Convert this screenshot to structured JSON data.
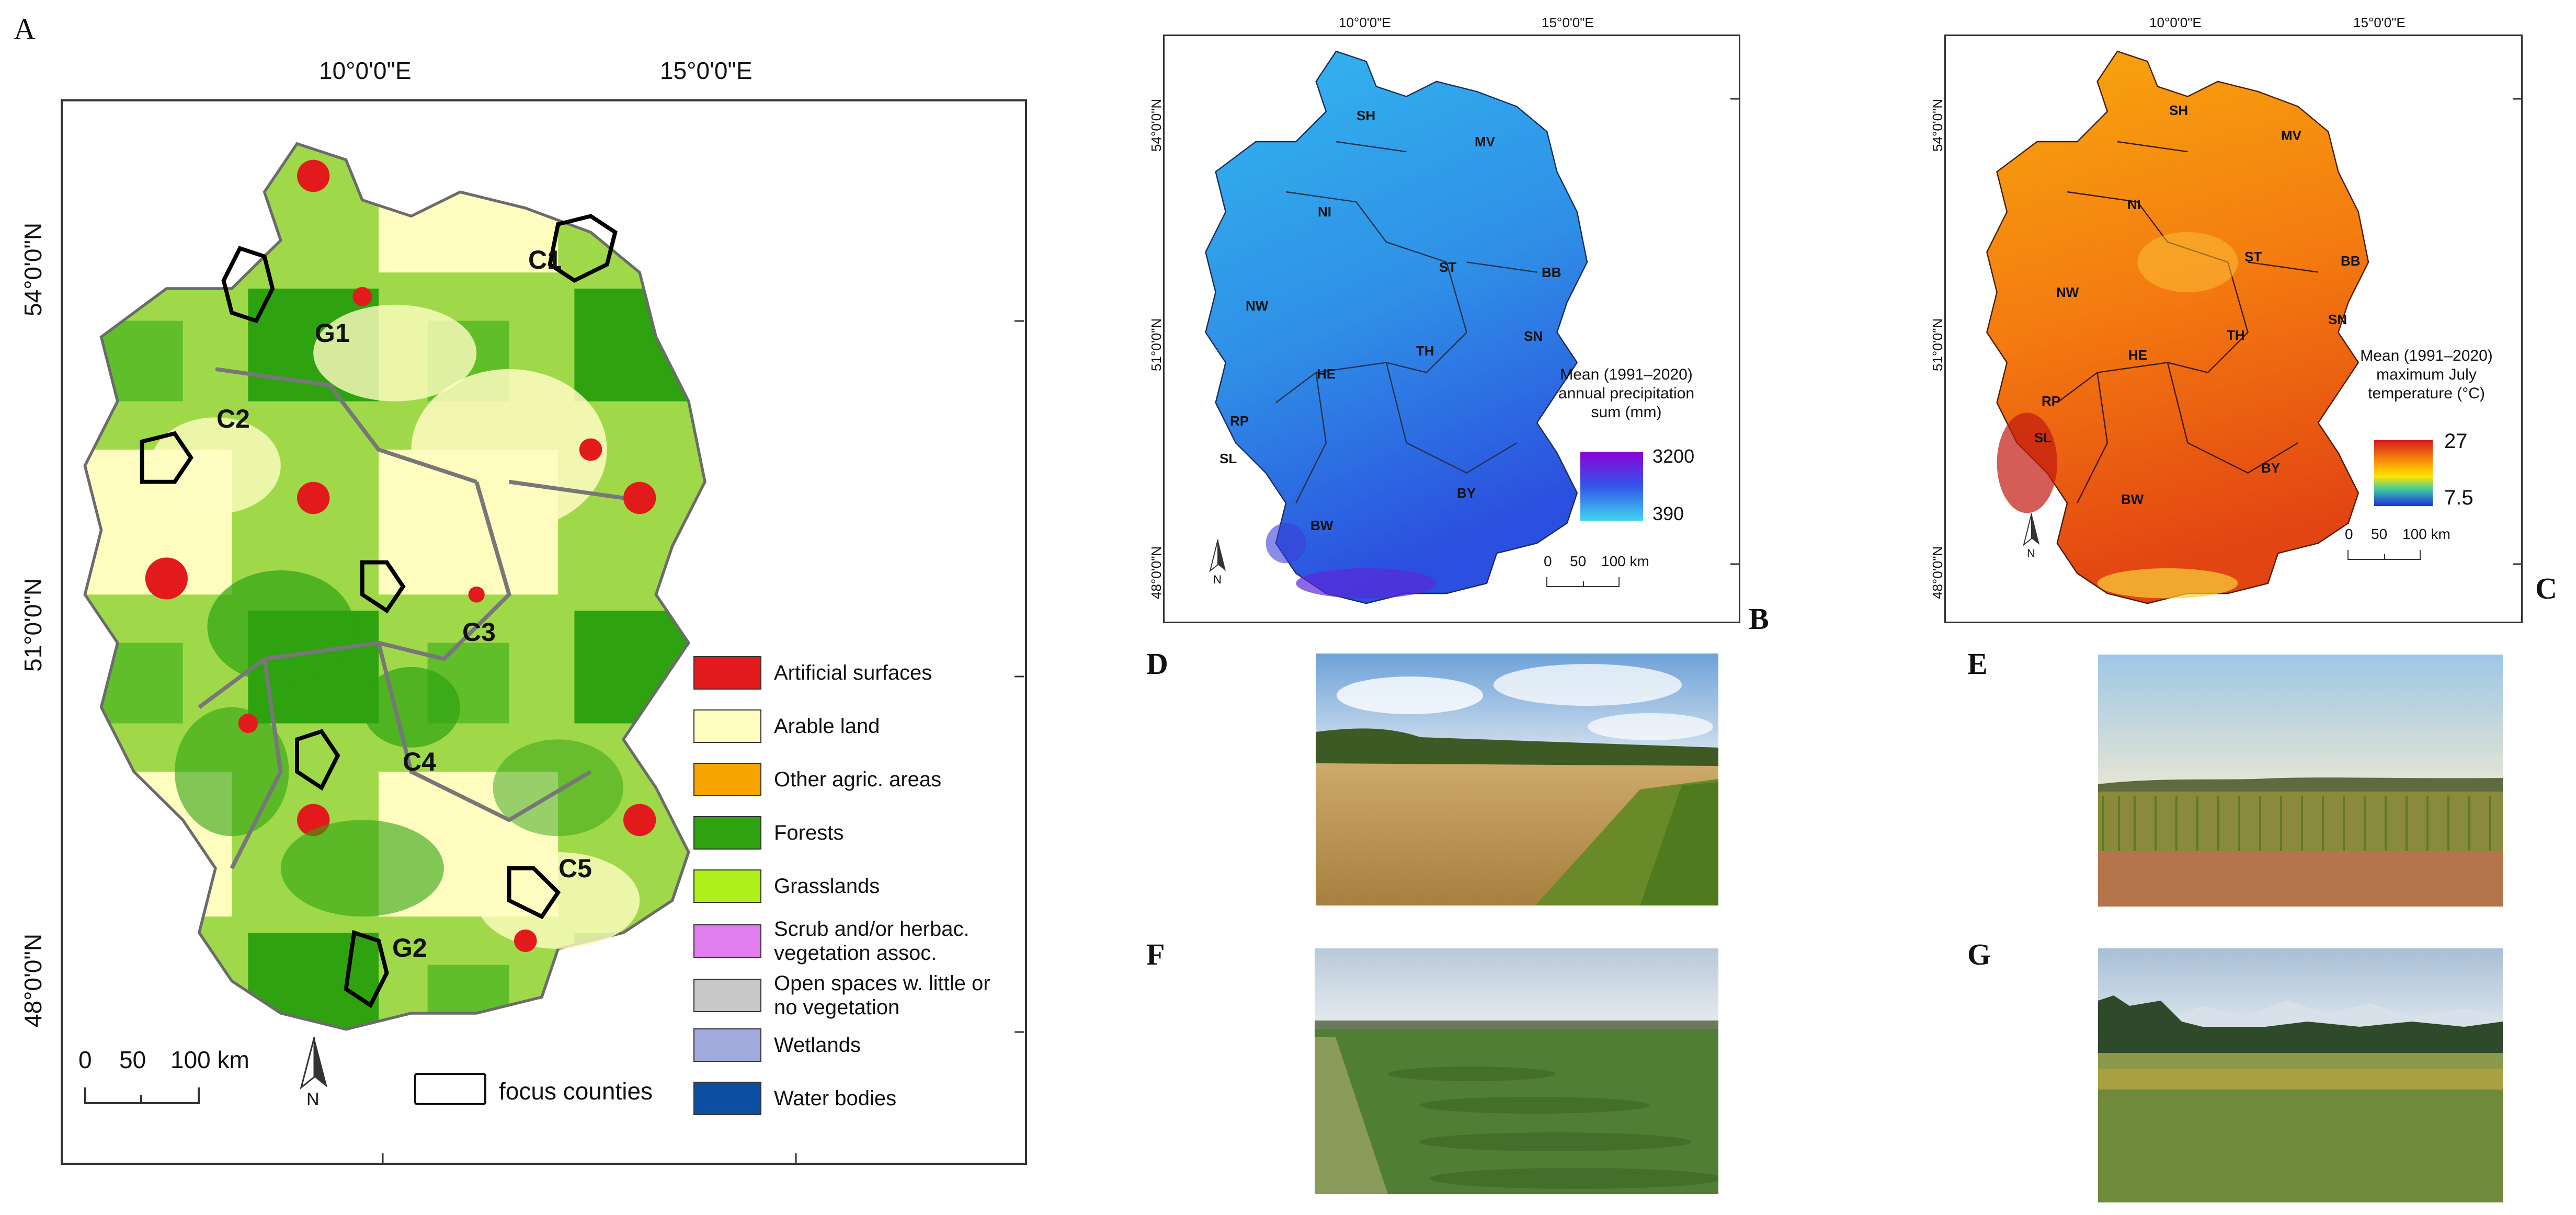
{
  "panel_a": {
    "letter": "A",
    "lon_labels": [
      "10°0'0\"E",
      "15°0'0\"E"
    ],
    "lat_labels": [
      "54°0'0\"N",
      "51°0'0\"N",
      "48°0'0\"N"
    ],
    "counties": [
      "C1",
      "C2",
      "C3",
      "C4",
      "C5",
      "G1",
      "G2"
    ],
    "scale": [
      "0",
      "50",
      "100 km"
    ],
    "north": "N",
    "focus_label": "focus counties",
    "legend": [
      {
        "label": "Artificial surfaces",
        "color": "#e31a1c"
      },
      {
        "label": "Arable land",
        "color": "#fffcc0"
      },
      {
        "label": "Other agric. areas",
        "color": "#f7a400"
      },
      {
        "label": "Forests",
        "color": "#2fa20f"
      },
      {
        "label": "Grasslands",
        "color": "#b0f01a"
      },
      {
        "label": "Scrub and/or herbac. vegetation assoc.",
        "color": "#e27df0"
      },
      {
        "label": "Open spaces w. little or no vegetation",
        "color": "#c8c8c8"
      },
      {
        "label": "Wetlands",
        "color": "#a2a9dc"
      },
      {
        "label": "Water bodies",
        "color": "#0b4fa3"
      }
    ]
  },
  "panel_b": {
    "letter": "B",
    "lon_labels": [
      "10°0'0\"E",
      "15°0'0\"E"
    ],
    "lat_labels": [
      "54°0'0\"N",
      "51°0'0\"N",
      "48°0'0\"N"
    ],
    "states": [
      "SH",
      "MV",
      "NI",
      "ST",
      "BB",
      "NW",
      "TH",
      "SN",
      "HE",
      "RP",
      "SL",
      "BW",
      "BY"
    ],
    "legend_title": [
      "Mean (1991–2020)",
      "annual precipitation",
      "sum (mm)"
    ],
    "legend_max": "3200",
    "legend_min": "390",
    "scale": [
      "0",
      "50",
      "100 km"
    ],
    "north": "N"
  },
  "panel_c": {
    "letter": "C",
    "lon_labels": [
      "10°0'0\"E",
      "15°0'0\"E"
    ],
    "lat_labels": [
      "54°0'0\"N",
      "51°0'0\"N",
      "48°0'0\"N"
    ],
    "states": [
      "SH",
      "MV",
      "NI",
      "ST",
      "BB",
      "NW",
      "TH",
      "SN",
      "HE",
      "RP",
      "SL",
      "BW",
      "BY"
    ],
    "legend_title": [
      "Mean (1991–2020)",
      "maximum July",
      "temperature (°C)"
    ],
    "legend_max": "27",
    "legend_min": "7.5",
    "scale": [
      "0",
      "50",
      "100 km"
    ],
    "north": "N"
  },
  "photos": {
    "d": {
      "letter": "D"
    },
    "e": {
      "letter": "E"
    },
    "f": {
      "letter": "F"
    },
    "g": {
      "letter": "G"
    }
  }
}
